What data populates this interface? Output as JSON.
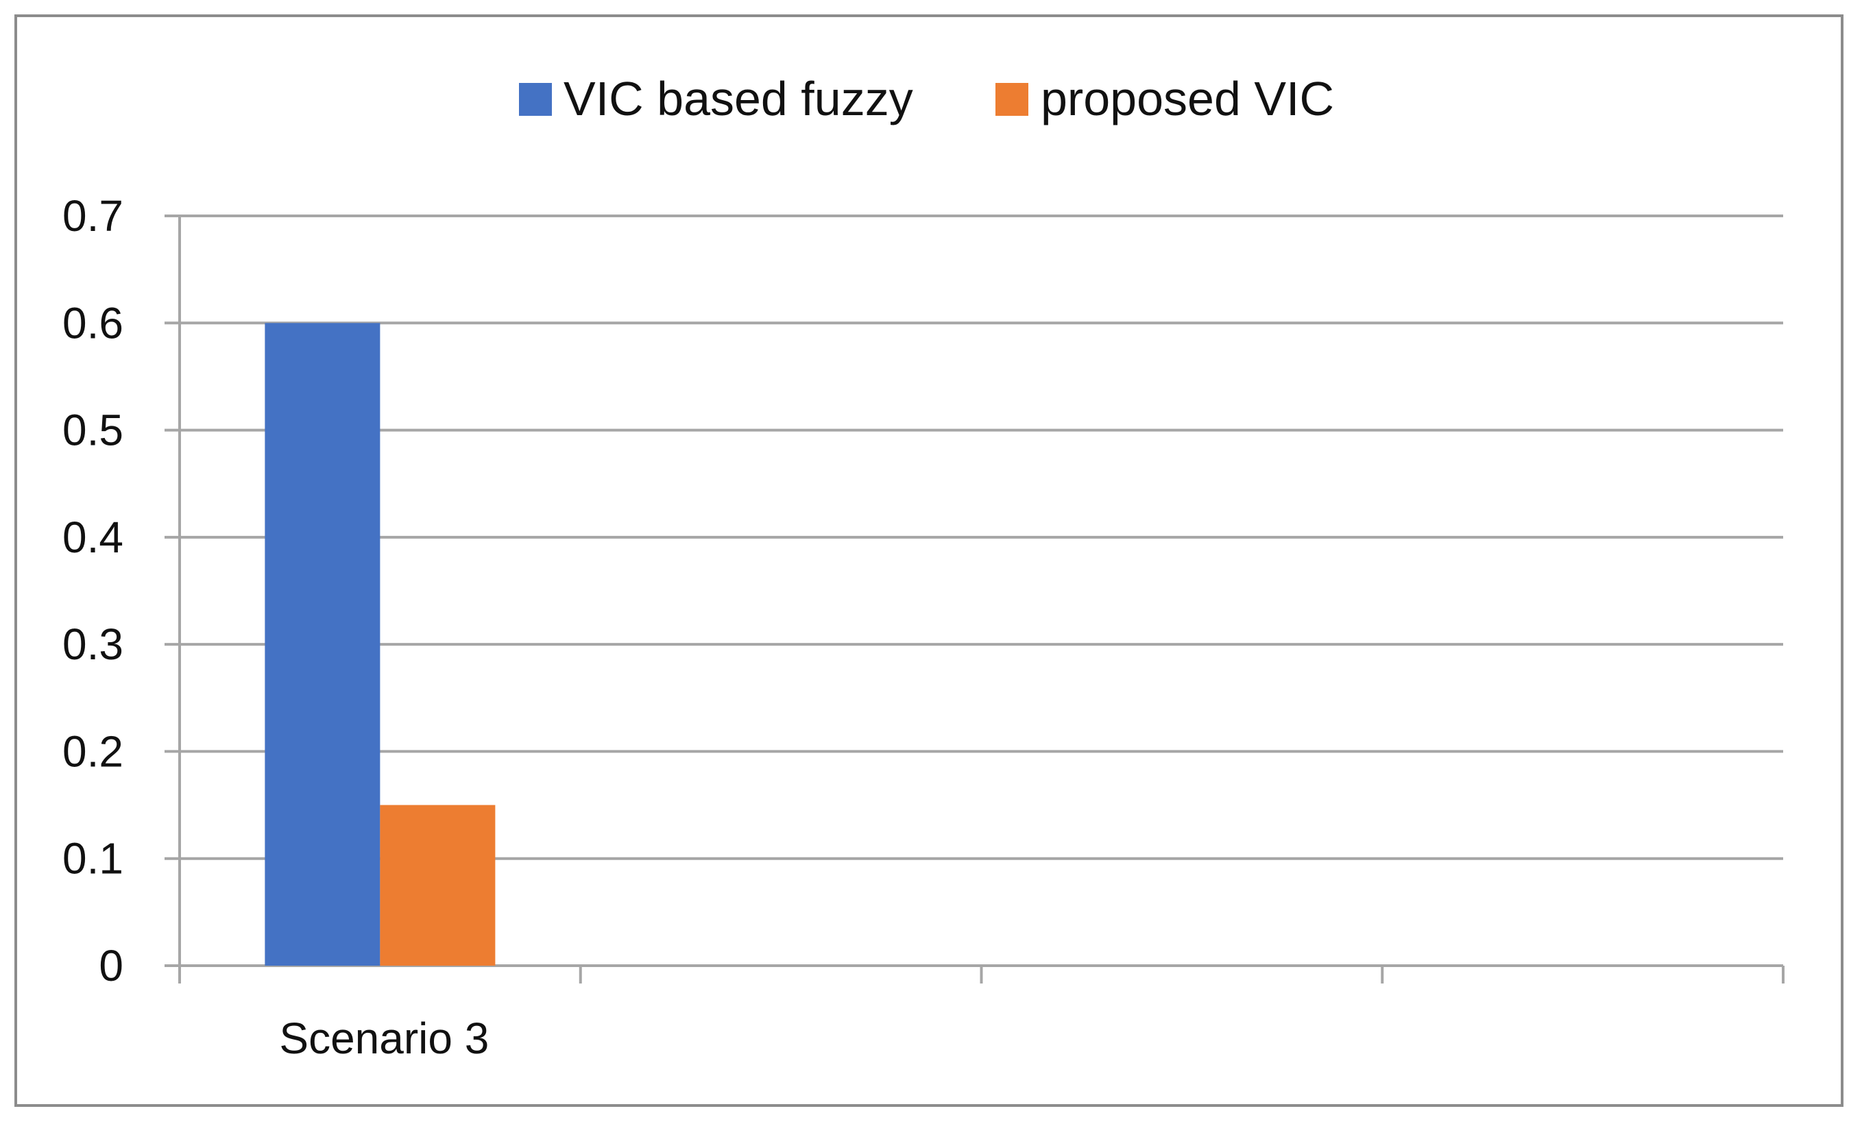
{
  "chart_data": {
    "type": "bar",
    "categories": [
      "Scenario 3",
      "",
      "",
      ""
    ],
    "series": [
      {
        "name": "VIC based fuzzy",
        "values": [
          0.6,
          null,
          null,
          null
        ],
        "color": "#4472C4"
      },
      {
        "name": "proposed VIC",
        "values": [
          0.15,
          null,
          null,
          null
        ],
        "color": "#ED7D31"
      }
    ],
    "title": "",
    "xlabel": "",
    "ylabel": "",
    "ylim": [
      0,
      0.7
    ],
    "yticks": [
      "0",
      "0.1",
      "0.2",
      "0.3",
      "0.4",
      "0.5",
      "0.6",
      "0.7"
    ],
    "grid": true,
    "legend_position": "top-center",
    "gridline_color": "#a6a6a6",
    "axis_color": "#a6a6a6"
  }
}
